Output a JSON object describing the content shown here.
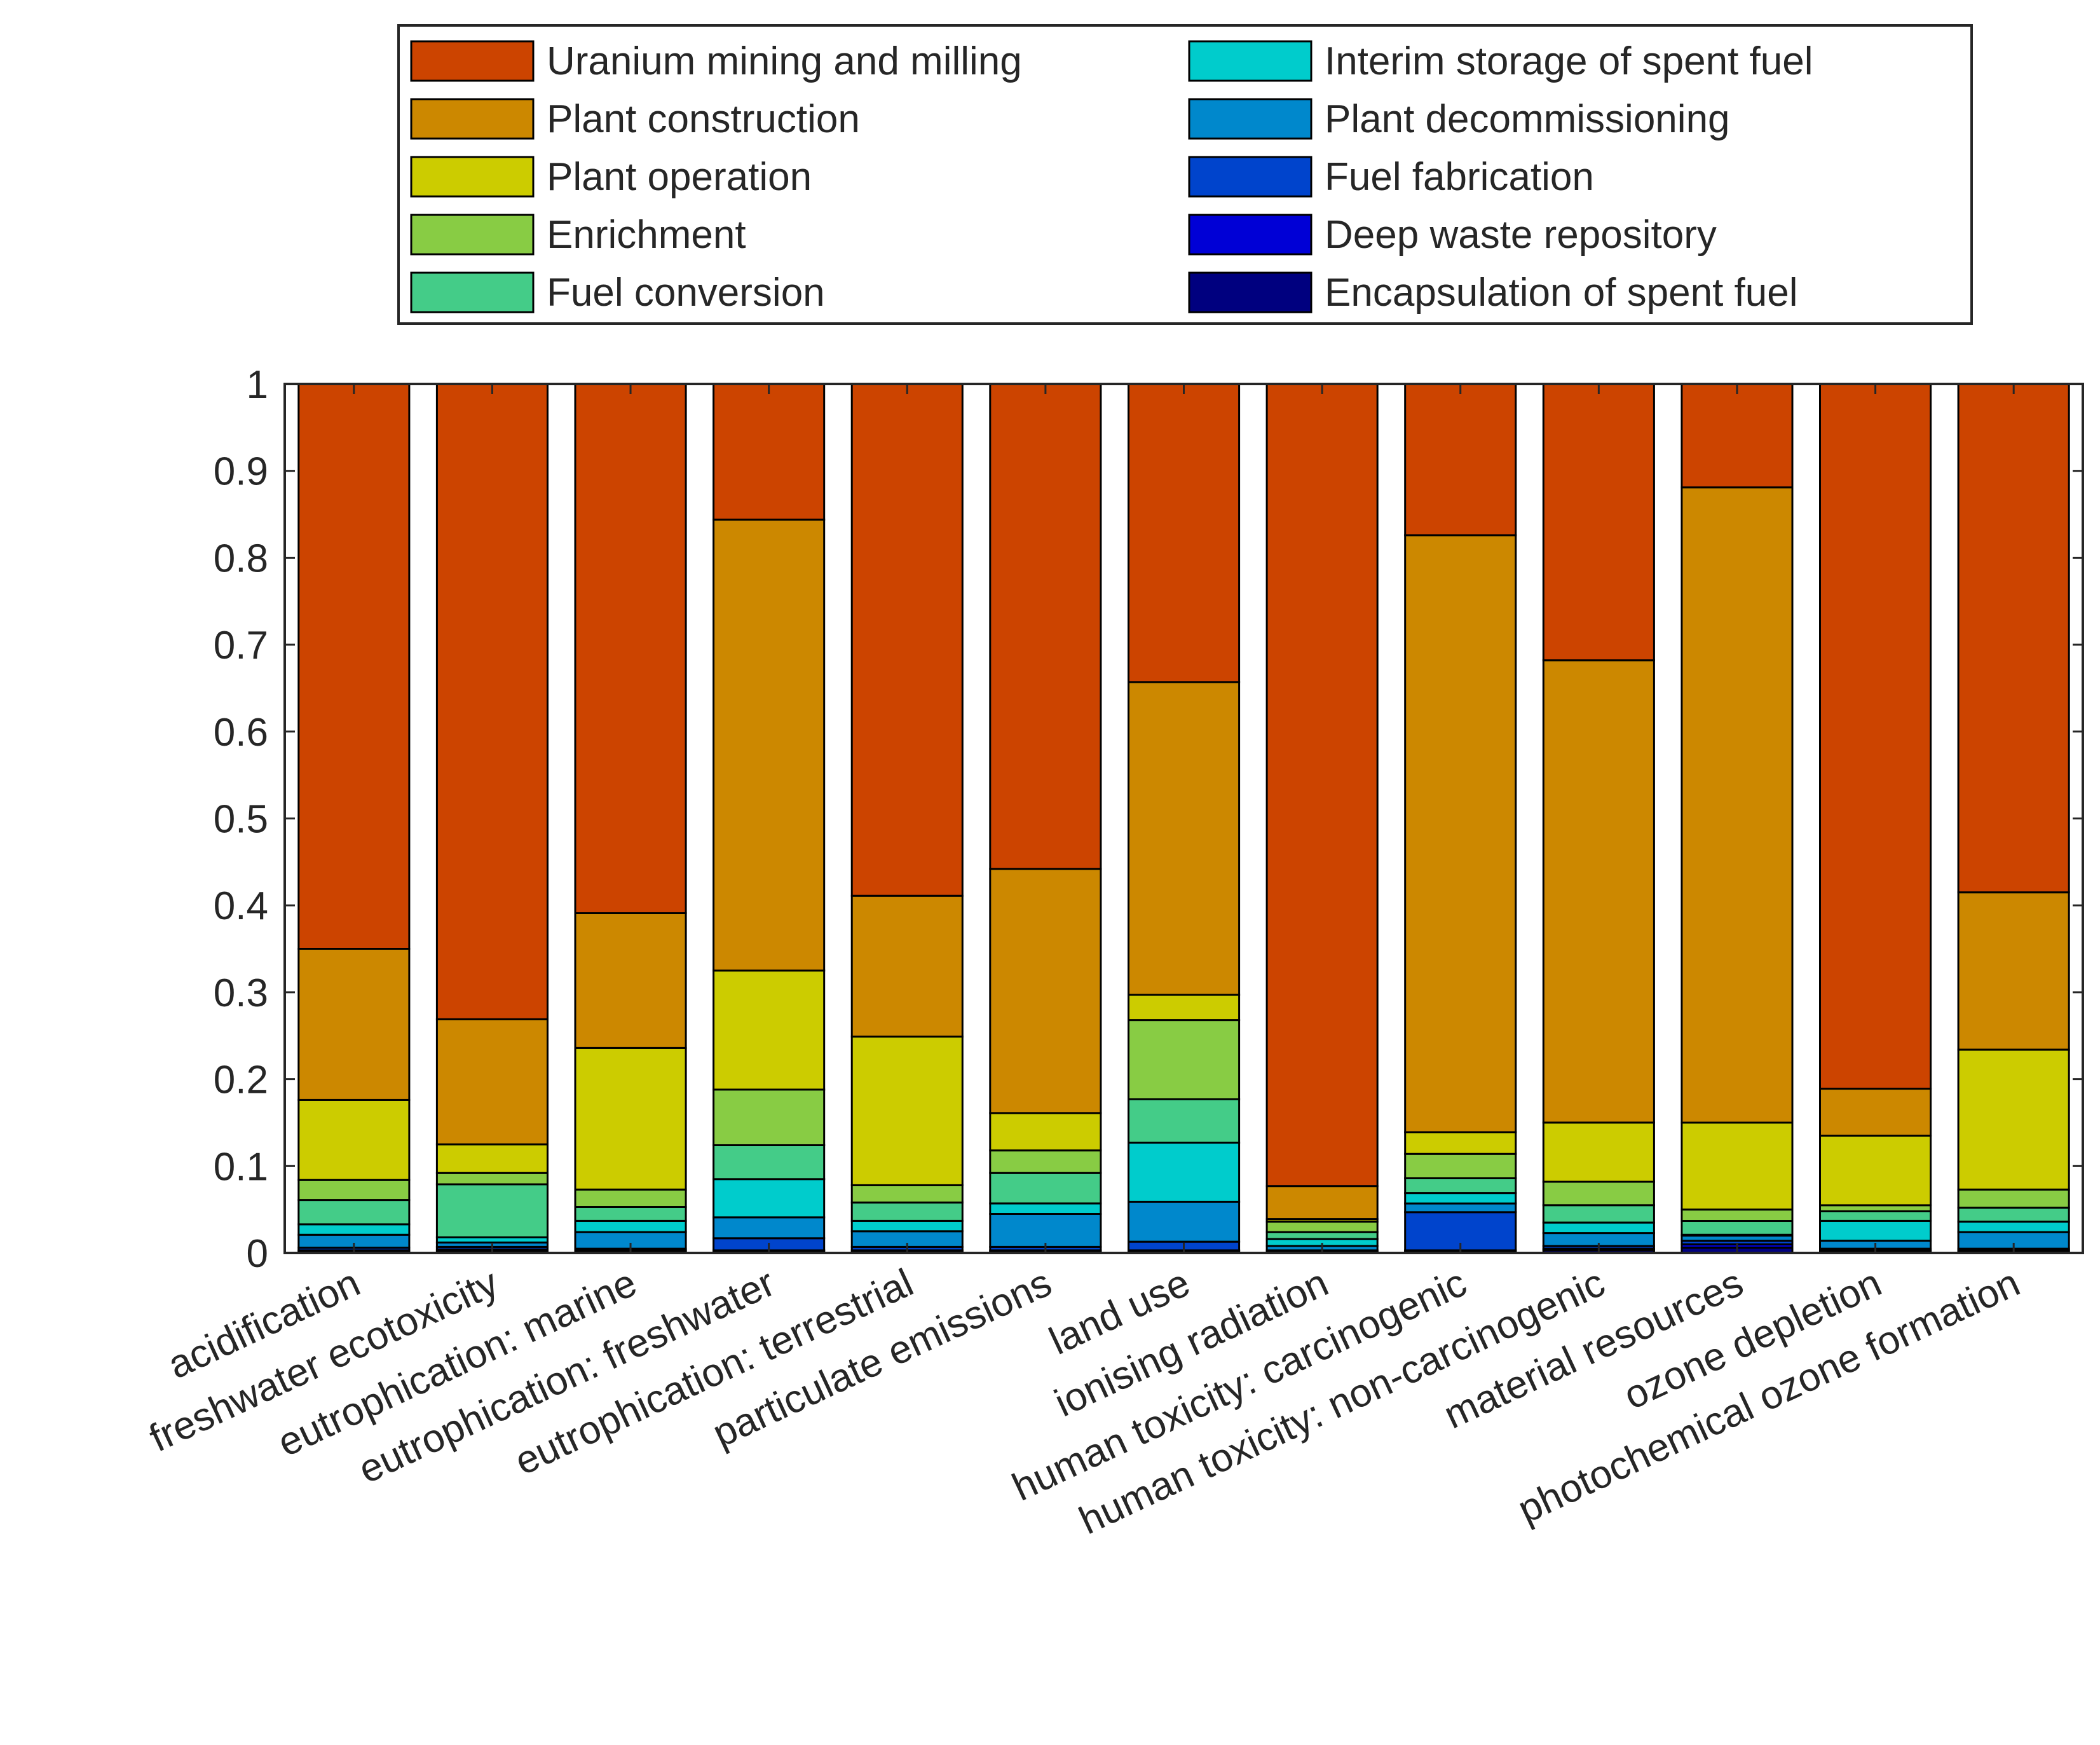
{
  "chart_data": {
    "type": "bar",
    "stacked": true,
    "categories": [
      "acidification",
      "freshwater ecotoxicity",
      "eutrophication: marine",
      "eutrophication: freshwater",
      "eutrophication: terrestrial",
      "particulate emissions",
      "land use",
      "ionising radiation",
      "human toxicity: carcinogenic",
      "human toxicity: non-carcinogenic",
      "material resources",
      "ozone depletion",
      "photochemical ozone formation"
    ],
    "series": [
      {
        "name": "Encapsulation of spent fuel",
        "color": "#00007f",
        "values": [
          0.002,
          0.002,
          0.002,
          0.002,
          0.002,
          0.002,
          0.002,
          0.001,
          0.002,
          0.003,
          0.006,
          0.002,
          0.002
        ]
      },
      {
        "name": "Deep waste repository",
        "color": "#0000d6",
        "values": [
          0.001,
          0.002,
          0.001,
          0.001,
          0.001,
          0.001,
          0.001,
          0.001,
          0.001,
          0.002,
          0.004,
          0.001,
          0.001
        ]
      },
      {
        "name": "Fuel fabrication",
        "color": "#0044cc",
        "values": [
          0.003,
          0.003,
          0.002,
          0.014,
          0.004,
          0.004,
          0.01,
          0.001,
          0.044,
          0.003,
          0.004,
          0.002,
          0.002
        ]
      },
      {
        "name": "Plant decommissioning",
        "color": "#0088cc",
        "values": [
          0.015,
          0.005,
          0.019,
          0.024,
          0.018,
          0.038,
          0.046,
          0.005,
          0.01,
          0.015,
          0.006,
          0.009,
          0.019
        ]
      },
      {
        "name": "Interim storage of spent fuel",
        "color": "#00cccc",
        "values": [
          0.012,
          0.006,
          0.013,
          0.044,
          0.012,
          0.012,
          0.068,
          0.008,
          0.012,
          0.012,
          0.001,
          0.023,
          0.012
        ]
      },
      {
        "name": "Fuel conversion",
        "color": "#44cc88",
        "values": [
          0.028,
          0.061,
          0.016,
          0.039,
          0.021,
          0.035,
          0.05,
          0.008,
          0.017,
          0.02,
          0.016,
          0.011,
          0.016
        ]
      },
      {
        "name": "Enrichment",
        "color": "#88cc44",
        "values": [
          0.023,
          0.013,
          0.02,
          0.064,
          0.02,
          0.026,
          0.091,
          0.012,
          0.028,
          0.027,
          0.013,
          0.007,
          0.021
        ]
      },
      {
        "name": "Plant operation",
        "color": "#cccc00",
        "values": [
          0.092,
          0.033,
          0.163,
          0.137,
          0.171,
          0.043,
          0.029,
          0.003,
          0.025,
          0.068,
          0.1,
          0.08,
          0.161
        ]
      },
      {
        "name": "Plant construction",
        "color": "#cc8800",
        "values": [
          0.174,
          0.144,
          0.155,
          0.519,
          0.162,
          0.281,
          0.36,
          0.038,
          0.687,
          0.532,
          0.731,
          0.054,
          0.181
        ]
      },
      {
        "name": "Uranium mining and milling",
        "color": "#cc4400",
        "values": [
          0.65,
          0.731,
          0.609,
          0.156,
          0.589,
          0.558,
          0.343,
          0.923,
          0.174,
          0.318,
          0.119,
          0.811,
          0.585
        ]
      }
    ],
    "legend": {
      "position": "top",
      "columns": [
        [
          "Uranium mining and milling",
          "Plant construction",
          "Plant operation",
          "Enrichment",
          "Fuel conversion"
        ],
        [
          "Interim storage of spent fuel",
          "Plant decommissioning",
          "Fuel fabrication",
          "Deep waste repository",
          "Encapsulation of spent fuel"
        ]
      ]
    },
    "title": "",
    "xlabel": "",
    "ylabel": "",
    "ylim": [
      0,
      1
    ],
    "yticks": [
      "0",
      "0.1",
      "0.2",
      "0.3",
      "0.4",
      "0.5",
      "0.6",
      "0.7",
      "0.8",
      "0.9",
      "1"
    ],
    "xtick_rotation_deg": 25,
    "grid": false
  }
}
